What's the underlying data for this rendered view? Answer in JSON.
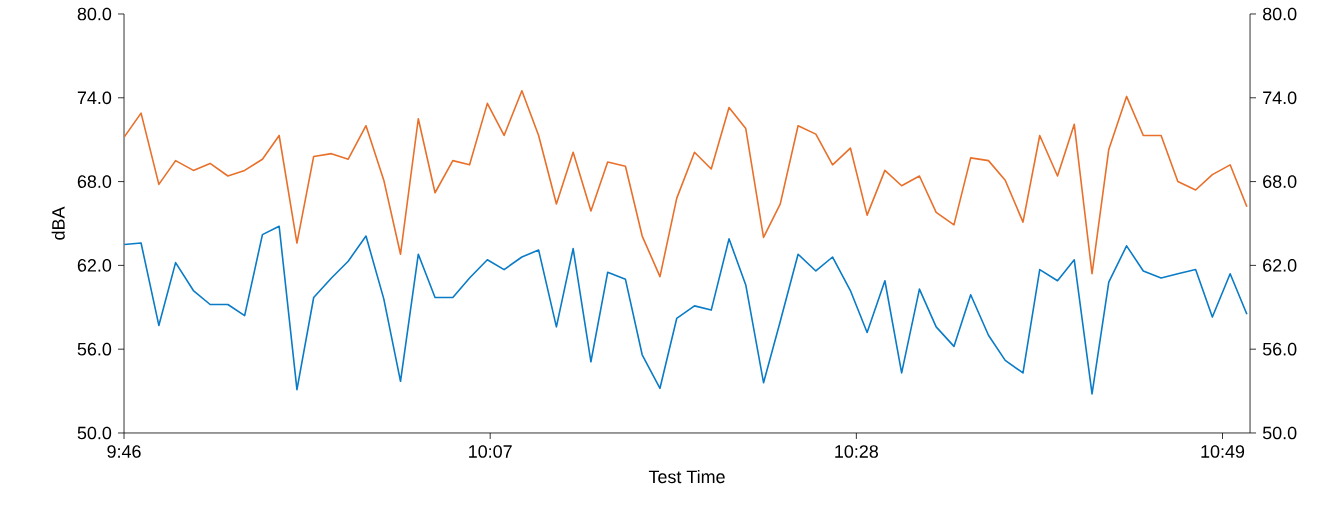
{
  "chart_data": {
    "type": "line",
    "xlabel": "Test Time",
    "ylabel": "dBA",
    "x": [
      9.767,
      9.783,
      9.8,
      9.816,
      9.833,
      9.849,
      9.866,
      9.882,
      9.899,
      9.915,
      9.932,
      9.948,
      9.965,
      9.981,
      9.998,
      10.015,
      10.031,
      10.048,
      10.064,
      10.081,
      10.097,
      10.114,
      10.13,
      10.147,
      10.163,
      10.18,
      10.196,
      10.213,
      10.229,
      10.246,
      10.262,
      10.279,
      10.295,
      10.312,
      10.328,
      10.345,
      10.361,
      10.378,
      10.394,
      10.411,
      10.428,
      10.444,
      10.461,
      10.477,
      10.494,
      10.51,
      10.527,
      10.543,
      10.56,
      10.576,
      10.593,
      10.609,
      10.626,
      10.642,
      10.659,
      10.675,
      10.692,
      10.708,
      10.725,
      10.741,
      10.758,
      10.774,
      10.791,
      10.807,
      10.824,
      10.84
    ],
    "series": [
      {
        "color": "#e8702a",
        "values": [
          71.2,
          72.9,
          67.8,
          69.5,
          68.8,
          69.3,
          68.4,
          68.8,
          69.6,
          71.3,
          63.6,
          69.8,
          70.0,
          69.6,
          72.0,
          68.1,
          62.8,
          72.5,
          67.2,
          69.5,
          69.2,
          73.6,
          71.3,
          74.5,
          71.3,
          66.4,
          70.1,
          65.9,
          69.4,
          69.1,
          64.1,
          61.2,
          66.8,
          70.1,
          68.9,
          73.3,
          71.8,
          64.0,
          66.4,
          72.0,
          71.4,
          69.2,
          70.4,
          65.6,
          68.8,
          67.7,
          68.4,
          65.8,
          64.9,
          69.7,
          69.5,
          68.1,
          65.1,
          71.3,
          68.4,
          72.1,
          61.4,
          70.3,
          74.1,
          71.3,
          71.3,
          68.0,
          67.4,
          68.5,
          69.2,
          66.2
        ]
      },
      {
        "color": "#0a7bc6",
        "values": [
          63.5,
          63.6,
          57.7,
          62.2,
          60.2,
          59.2,
          59.2,
          58.4,
          64.2,
          64.8,
          53.1,
          59.7,
          61.1,
          62.3,
          64.1,
          59.6,
          53.7,
          62.8,
          59.7,
          59.7,
          61.1,
          62.4,
          61.7,
          62.6,
          63.1,
          57.6,
          63.2,
          55.1,
          61.5,
          61.0,
          55.6,
          53.2,
          58.2,
          59.1,
          58.8,
          63.9,
          60.6,
          53.6,
          58.0,
          62.8,
          61.6,
          62.6,
          60.2,
          57.2,
          60.9,
          54.3,
          60.3,
          57.6,
          56.2,
          59.9,
          57.0,
          55.2,
          54.3,
          61.7,
          60.9,
          62.4,
          52.8,
          60.8,
          63.4,
          61.6,
          61.1,
          61.4,
          61.7,
          58.3,
          61.4,
          58.5
        ]
      }
    ],
    "xlim": [
      9.7667,
      10.843
    ],
    "xticks": [
      {
        "value": 9.7667,
        "label": "9:46"
      },
      {
        "value": 10.1167,
        "label": "10:07"
      },
      {
        "value": 10.4667,
        "label": "10:28"
      },
      {
        "value": 10.8167,
        "label": "10:49"
      }
    ],
    "ylim": [
      50,
      80
    ],
    "yticks": [
      {
        "value": 50,
        "label": "50.0"
      },
      {
        "value": 56,
        "label": "56.0"
      },
      {
        "value": 62,
        "label": "62.0"
      },
      {
        "value": 68,
        "label": "68.0"
      },
      {
        "value": 74,
        "label": "74.0"
      },
      {
        "value": 80,
        "label": "80.0"
      }
    ],
    "y2lim": [
      50,
      80
    ],
    "y2ticks": [
      {
        "value": 50,
        "label": "50.0"
      },
      {
        "value": 56,
        "label": "56.0"
      },
      {
        "value": 62,
        "label": "62.0"
      },
      {
        "value": 68,
        "label": "68.0"
      },
      {
        "value": 74,
        "label": "74.0"
      },
      {
        "value": 80,
        "label": "80.0"
      }
    ],
    "grid": false,
    "legend": false,
    "marker": "none",
    "line_style": "solid"
  }
}
